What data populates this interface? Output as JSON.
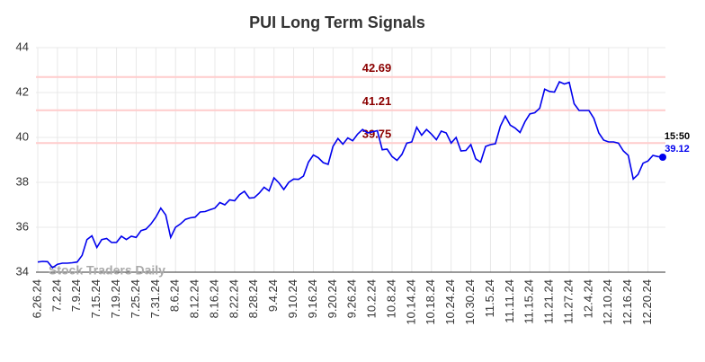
{
  "chart_data": {
    "type": "line",
    "title": "PUI Long Term Signals",
    "categories": [
      "6.26.24",
      null,
      null,
      null,
      "7.2.24",
      null,
      null,
      null,
      "7.9.24",
      null,
      null,
      null,
      "7.15.24",
      null,
      null,
      null,
      "7.19.24",
      null,
      null,
      null,
      "7.25.24",
      null,
      null,
      null,
      "7.31.24",
      null,
      null,
      null,
      "8.6.24",
      null,
      null,
      null,
      "8.12.24",
      null,
      null,
      null,
      "8.16.24",
      null,
      null,
      null,
      "8.22.24",
      null,
      null,
      null,
      "8.28.24",
      null,
      null,
      null,
      "9.4.24",
      null,
      null,
      null,
      "9.10.24",
      null,
      null,
      null,
      "9.16.24",
      null,
      null,
      null,
      "9.20.24",
      null,
      null,
      null,
      "9.26.24",
      null,
      null,
      null,
      "10.2.24",
      null,
      null,
      null,
      "10.8.24",
      null,
      null,
      null,
      "10.14.24",
      null,
      null,
      null,
      "10.18.24",
      null,
      null,
      null,
      "10.24.24",
      null,
      null,
      null,
      "10.30.24",
      null,
      null,
      null,
      "11.5.24",
      null,
      null,
      null,
      "11.11.24",
      null,
      null,
      null,
      "11.15.24",
      null,
      null,
      null,
      "11.21.24",
      null,
      null,
      null,
      "11.27.24",
      null,
      null,
      null,
      "12.4.24",
      null,
      null,
      null,
      "12.10.24",
      null,
      null,
      null,
      "12.16.24",
      null,
      null,
      null,
      "12.20.24",
      null,
      null,
      null
    ],
    "values": [
      34.45,
      34.48,
      34.47,
      34.2,
      34.35,
      34.4,
      34.4,
      34.42,
      34.45,
      34.75,
      35.45,
      35.62,
      35.1,
      35.45,
      35.5,
      35.32,
      35.33,
      35.6,
      35.45,
      35.6,
      35.55,
      35.85,
      35.92,
      36.15,
      36.45,
      36.85,
      36.55,
      35.55,
      36.0,
      36.15,
      36.35,
      36.42,
      36.45,
      36.68,
      36.7,
      36.78,
      36.85,
      37.1,
      37.0,
      37.22,
      37.18,
      37.45,
      37.6,
      37.3,
      37.32,
      37.52,
      37.78,
      37.62,
      38.2,
      37.98,
      37.68,
      38.0,
      38.15,
      38.13,
      38.28,
      38.9,
      39.22,
      39.1,
      38.88,
      38.8,
      39.6,
      39.95,
      39.7,
      39.98,
      39.85,
      40.15,
      40.35,
      40.2,
      40.25,
      40.3,
      39.45,
      39.48,
      39.15,
      38.98,
      39.25,
      39.75,
      39.8,
      40.45,
      40.1,
      40.35,
      40.15,
      39.9,
      40.28,
      40.2,
      39.75,
      40.0,
      39.4,
      39.42,
      39.68,
      39.05,
      38.9,
      39.6,
      39.68,
      39.72,
      40.5,
      40.95,
      40.55,
      40.42,
      40.22,
      40.7,
      41.05,
      41.1,
      41.3,
      42.15,
      42.05,
      42.02,
      42.48,
      42.38,
      42.45,
      41.5,
      41.2,
      41.2,
      41.2,
      40.85,
      40.2,
      39.88,
      39.8,
      39.8,
      39.75,
      39.4,
      39.2,
      38.15,
      38.35,
      38.85,
      38.95,
      39.2,
      39.15,
      39.12
    ],
    "color": "#0000ee",
    "ylim": [
      34,
      44
    ],
    "yticks": [
      34,
      36,
      38,
      40,
      42,
      44
    ],
    "grid": true,
    "hlines": [
      42.69,
      41.21,
      39.75
    ],
    "hline_color": "#ffcccc",
    "hline_label_color": "#8b0000",
    "annotation": "15:50",
    "watermark": "Stock Traders Daily"
  }
}
